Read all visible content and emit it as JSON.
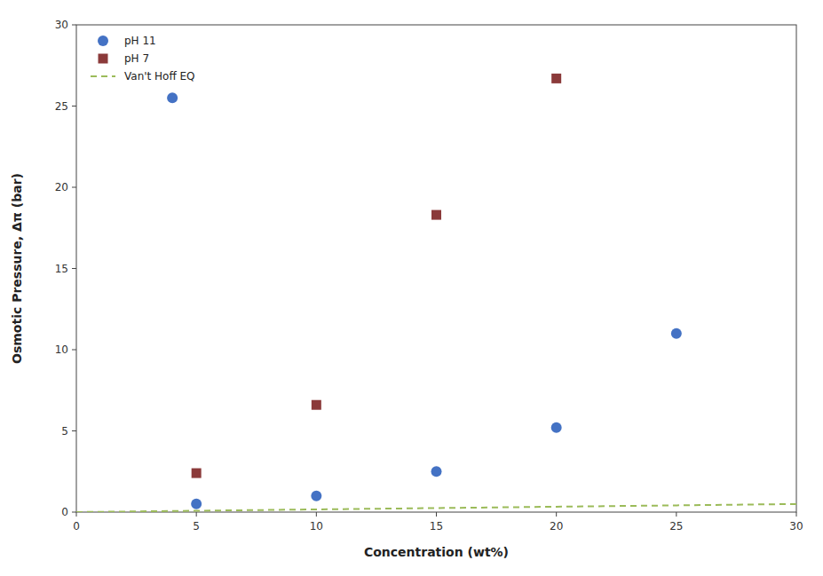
{
  "chart_data": {
    "type": "scatter",
    "xlabel": "Concentration (wt%)",
    "ylabel": "Osmotic Pressure, Δπ (bar)",
    "xlim": [
      0,
      30
    ],
    "ylim": [
      0,
      30
    ],
    "xticks": [
      0,
      5,
      10,
      15,
      20,
      25,
      30
    ],
    "yticks": [
      0,
      5,
      10,
      15,
      20,
      25,
      30
    ],
    "grid": false,
    "legend": "upper left",
    "series": [
      {
        "name": "pH 11",
        "type": "scatter",
        "marker": "circle",
        "color": "#4472C4",
        "x": [
          4,
          5,
          10,
          15,
          20,
          25
        ],
        "values": [
          25.5,
          0.5,
          1.0,
          2.5,
          5.2,
          11.0
        ]
      },
      {
        "name": "pH 7",
        "type": "scatter",
        "marker": "square",
        "color": "#8B3A3A",
        "x": [
          5,
          10,
          15,
          20
        ],
        "values": [
          2.4,
          6.6,
          18.3,
          26.7
        ]
      },
      {
        "name": "Van't Hoff EQ",
        "type": "line",
        "line_style": "dashed",
        "color": "#9BBB59",
        "x": [
          0,
          5,
          10,
          15,
          20,
          25,
          30
        ],
        "values": [
          0.0,
          0.083,
          0.166,
          0.249,
          0.332,
          0.415,
          0.498
        ]
      }
    ]
  }
}
